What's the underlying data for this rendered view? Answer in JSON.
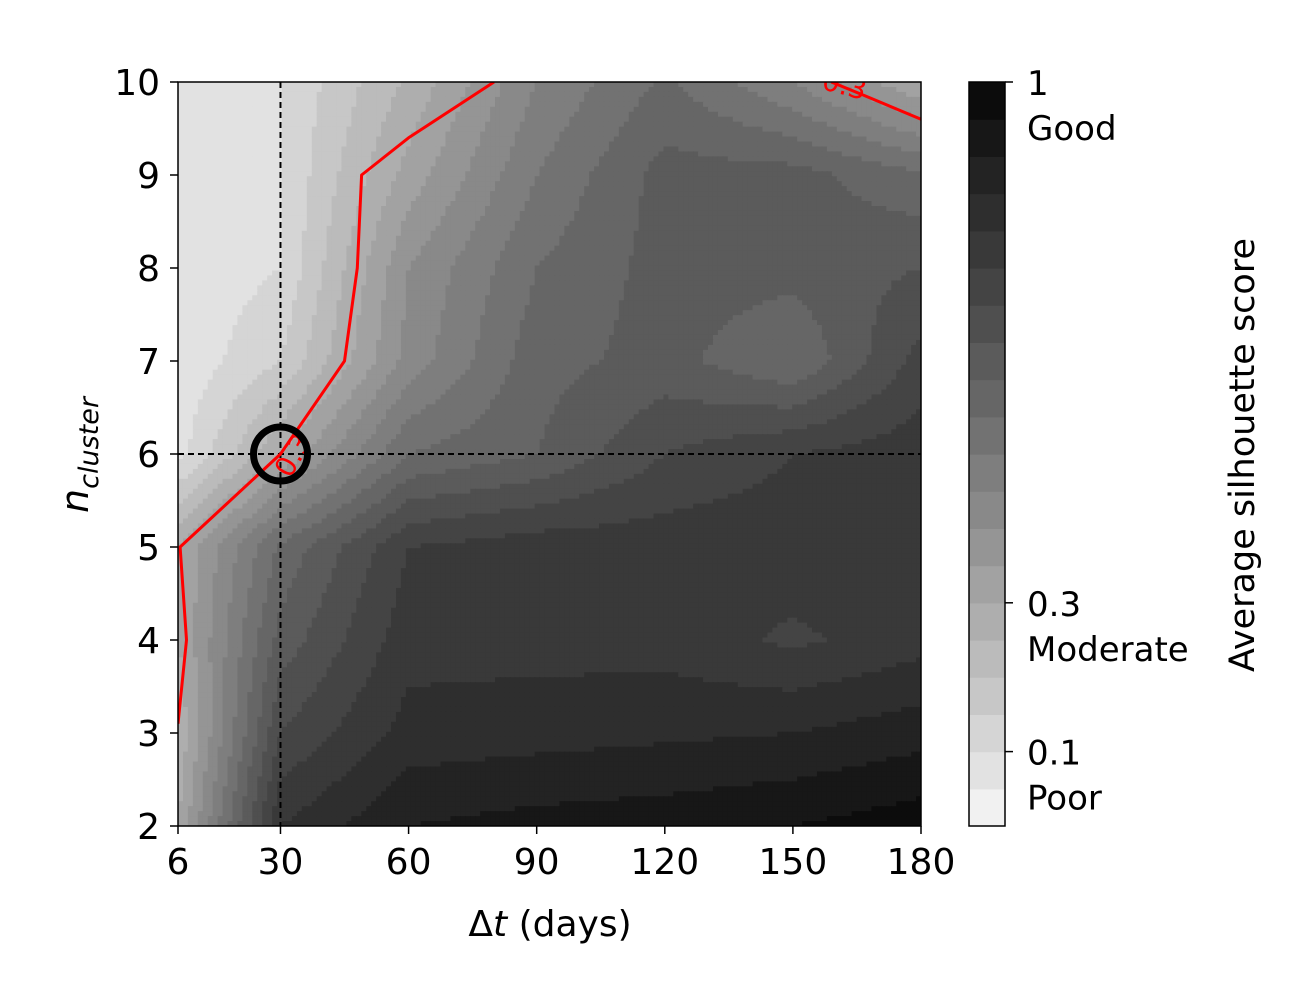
{
  "chart_data": {
    "type": "heatmap",
    "subtype": "filled-contour",
    "title": "",
    "xlabel": {
      "symbol": "Δ",
      "italic": "t",
      "rest": " (days)"
    },
    "ylabel": {
      "base": "n",
      "subscript": "cluster"
    },
    "xlim": [
      6,
      180
    ],
    "ylim": [
      2,
      10
    ],
    "x_ticks": [
      6,
      30,
      60,
      90,
      120,
      150,
      180
    ],
    "y_ticks": [
      2,
      3,
      4,
      5,
      6,
      7,
      8,
      9,
      10
    ],
    "colormap": "Greys",
    "colorbar": {
      "label": "Average silhouette score",
      "range": [
        0,
        1
      ],
      "levels": 20,
      "ticks": [
        {
          "value": 1,
          "label": "1",
          "quality": "Good"
        },
        {
          "value": 0.3,
          "label": "0.3",
          "quality": "Moderate"
        },
        {
          "value": 0.1,
          "label": "0.1",
          "quality": "Poor"
        }
      ]
    },
    "contour_line": {
      "value": 0.3,
      "color": "#ff0000",
      "inline_label": "0.3",
      "points": [
        [
          6,
          3.1
        ],
        [
          8,
          4.0
        ],
        [
          6.5,
          5.0
        ],
        [
          30,
          6.0
        ],
        [
          45,
          7.0
        ],
        [
          48,
          8.0
        ],
        [
          49,
          9.0
        ],
        [
          60,
          9.4
        ],
        [
          80,
          10.0
        ]
      ],
      "upper_right_points": [
        [
          159,
          10.0
        ],
        [
          167,
          9.85
        ],
        [
          180,
          9.6
        ]
      ],
      "upper_right_label": "0.3"
    },
    "selected_point": {
      "x": 30,
      "y": 6
    },
    "x_values": [
      6,
      30,
      60,
      90,
      120,
      150,
      180
    ],
    "y_values": [
      2,
      3,
      4,
      5,
      6,
      7,
      8,
      9,
      10
    ],
    "score_grid": [
      [
        0.3,
        0.8,
        0.9,
        0.92,
        0.93,
        0.95,
        0.98
      ],
      [
        0.26,
        0.7,
        0.82,
        0.83,
        0.84,
        0.85,
        0.88
      ],
      [
        0.3,
        0.62,
        0.78,
        0.78,
        0.78,
        0.74,
        0.78
      ],
      [
        0.3,
        0.56,
        0.75,
        0.78,
        0.78,
        0.78,
        0.78
      ],
      [
        0.08,
        0.3,
        0.55,
        0.6,
        0.7,
        0.75,
        0.78
      ],
      [
        0.06,
        0.15,
        0.42,
        0.58,
        0.62,
        0.55,
        0.72
      ],
      [
        0.06,
        0.1,
        0.4,
        0.55,
        0.62,
        0.62,
        0.65
      ],
      [
        0.05,
        0.1,
        0.32,
        0.5,
        0.62,
        0.62,
        0.56
      ],
      [
        0.05,
        0.1,
        0.26,
        0.45,
        0.56,
        0.45,
        0.3
      ]
    ]
  }
}
